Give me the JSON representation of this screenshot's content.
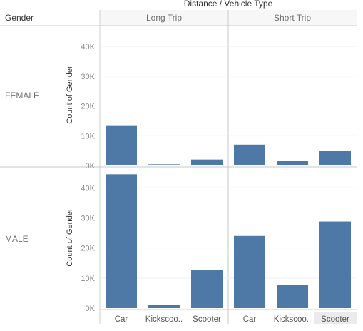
{
  "chart_data": {
    "type": "bar",
    "column_title": "Distance / Vehicle Type",
    "row_title": "Gender",
    "ylabel": "Count of Gender",
    "ylim": [
      0,
      46000
    ],
    "yticks": [
      "0K",
      "10K",
      "20K",
      "30K",
      "40K"
    ],
    "ytick_values": [
      0,
      10000,
      20000,
      30000,
      40000
    ],
    "columns": [
      "Long Trip",
      "Short Trip"
    ],
    "rows": [
      "FEMALE",
      "MALE"
    ],
    "categories": [
      "Car",
      "Kickscoo..",
      "Scooter"
    ],
    "highlighted_category": {
      "column": 1,
      "index": 2
    },
    "color": "#4e79a7",
    "grid": true,
    "cells": [
      {
        "row": "FEMALE",
        "column": "Long Trip",
        "values": [
          13500,
          400,
          2000
        ]
      },
      {
        "row": "FEMALE",
        "column": "Short Trip",
        "values": [
          7000,
          1600,
          4800
        ]
      },
      {
        "row": "MALE",
        "column": "Long Trip",
        "values": [
          44500,
          1000,
          12800
        ]
      },
      {
        "row": "MALE",
        "column": "Short Trip",
        "values": [
          24000,
          7800,
          28800
        ]
      }
    ]
  }
}
